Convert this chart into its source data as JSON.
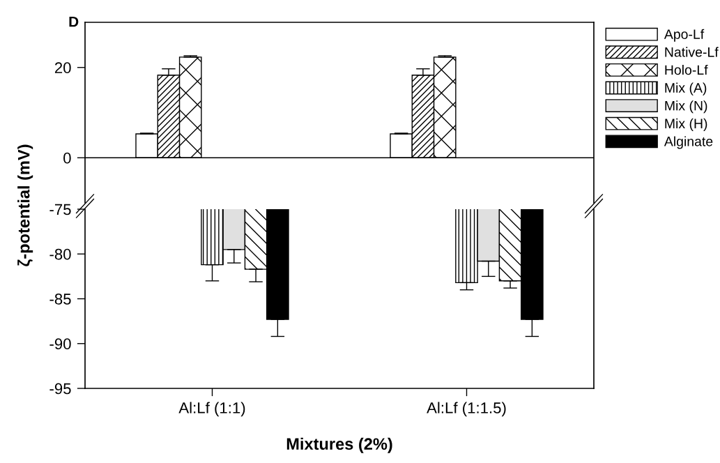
{
  "chart_data": [
    {
      "type": "bar",
      "annotations": [
        "D"
      ],
      "ylabel": "ζ-potential (mV)",
      "categories": [
        null,
        null
      ],
      "tick_labels": "y",
      "ylim": [
        -10,
        30
      ],
      "yticks": [
        0,
        20
      ],
      "legend": "right",
      "ref_lines": [
        {
          "axis": "y",
          "value": 0,
          "color": "#000000"
        }
      ],
      "series": [
        {
          "name": "Apo-Lf",
          "color": "#ffffff",
          "values": [
            5.3,
            5.3
          ],
          "errors": [
            [
              5.3,
              5.45
            ],
            [
              5.3,
              5.45
            ]
          ]
        },
        {
          "name": "Native-Lf",
          "color": "#000000",
          "values": [
            18.3,
            18.3
          ],
          "errors": [
            [
              18.3,
              19.7
            ],
            [
              18.3,
              19.7
            ]
          ]
        },
        {
          "name": "Holo-Lf",
          "color": "#000000",
          "values": [
            22.3,
            22.3
          ],
          "errors": [
            [
              22.3,
              22.6
            ],
            [
              22.3,
              22.6
            ]
          ]
        },
        {
          "name": "Mix (A)",
          "color": "#000000",
          "values": [
            null,
            null
          ]
        },
        {
          "name": "Mix (N)",
          "color": "#e0e0e0",
          "values": [
            null,
            null
          ]
        },
        {
          "name": "Mix (H)",
          "color": "#000000",
          "values": [
            null,
            null
          ]
        },
        {
          "name": "Alginate",
          "color": "#000000",
          "values": [
            null,
            null
          ]
        }
      ]
    },
    {
      "type": "bar",
      "xlabel": "Mixtures (2%)",
      "categories": [
        "Al:Lf (1:1)",
        "Al:Lf (1:1.5)"
      ],
      "ylim": [
        -95,
        -75
      ],
      "yticks": [
        -75,
        -80,
        -85,
        -90,
        -95
      ],
      "series": [
        {
          "color": "#000000",
          "values": [
            -81.2,
            -83.2
          ],
          "errors": [
            [
              -83.0,
              -81.2
            ],
            [
              -84.0,
              -83.2
            ]
          ]
        },
        {
          "color": "#e0e0e0",
          "values": [
            -79.5,
            -80.8
          ],
          "errors": [
            [
              -81.0,
              -79.5
            ],
            [
              -82.5,
              -80.8
            ]
          ]
        },
        {
          "color": "#000000",
          "values": [
            -81.7,
            -83.0
          ],
          "errors": [
            [
              -83.1,
              -81.7
            ],
            [
              -83.8,
              -83.0
            ]
          ]
        },
        {
          "color": "#000000",
          "values": [
            -87.3,
            -87.3
          ],
          "errors": [
            [
              -89.2,
              -87.3
            ],
            [
              -89.2,
              -87.3
            ]
          ]
        }
      ]
    }
  ]
}
